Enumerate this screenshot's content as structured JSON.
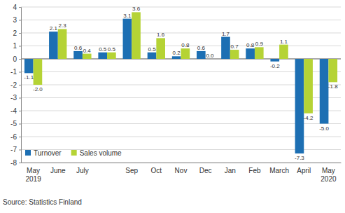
{
  "chart_data": {
    "type": "bar",
    "categories": [
      "May 2019",
      "June",
      "July",
      null,
      "Sep",
      "Oct",
      "Nov",
      "Dec",
      "Jan",
      "Feb",
      "March",
      "April",
      "May 2020"
    ],
    "series": [
      {
        "name": "Turnover",
        "color": "#1d6fb3",
        "values": [
          -1.1,
          2.1,
          0.6,
          0.5,
          3.1,
          0.5,
          0.2,
          0.6,
          1.7,
          0.8,
          -0.2,
          -7.3,
          -5.0
        ],
        "value_labels": [
          "-1.1",
          "2.1",
          "0.6",
          "0.5",
          "3.1",
          "0.5",
          "0.2",
          "0.6",
          "1.7",
          "0.8",
          "-0.2",
          "-7.3",
          "-5.0"
        ]
      },
      {
        "name": "Sales volume",
        "color": "#b5d335",
        "values": [
          -2.0,
          2.3,
          0.4,
          0.5,
          3.6,
          1.6,
          0.8,
          0.0,
          0.7,
          0.9,
          1.1,
          -4.2,
          -1.8
        ],
        "value_labels": [
          "-2.0",
          "2.3",
          "0.4",
          "0.5",
          "3.6",
          "1.6",
          "0.8",
          "0.0",
          "0.7",
          "0.9",
          "1.1",
          "-4.2",
          "-1.8"
        ]
      }
    ],
    "ylim": [
      -8,
      4
    ],
    "yticks": [
      -8,
      -7,
      -6,
      -5,
      -4,
      -3,
      -2,
      -1,
      0,
      1,
      2,
      3,
      4
    ],
    "grid": true,
    "legend": "lower left",
    "data_labels": true,
    "annotations": [
      "Source: Statistics Finland"
    ]
  }
}
